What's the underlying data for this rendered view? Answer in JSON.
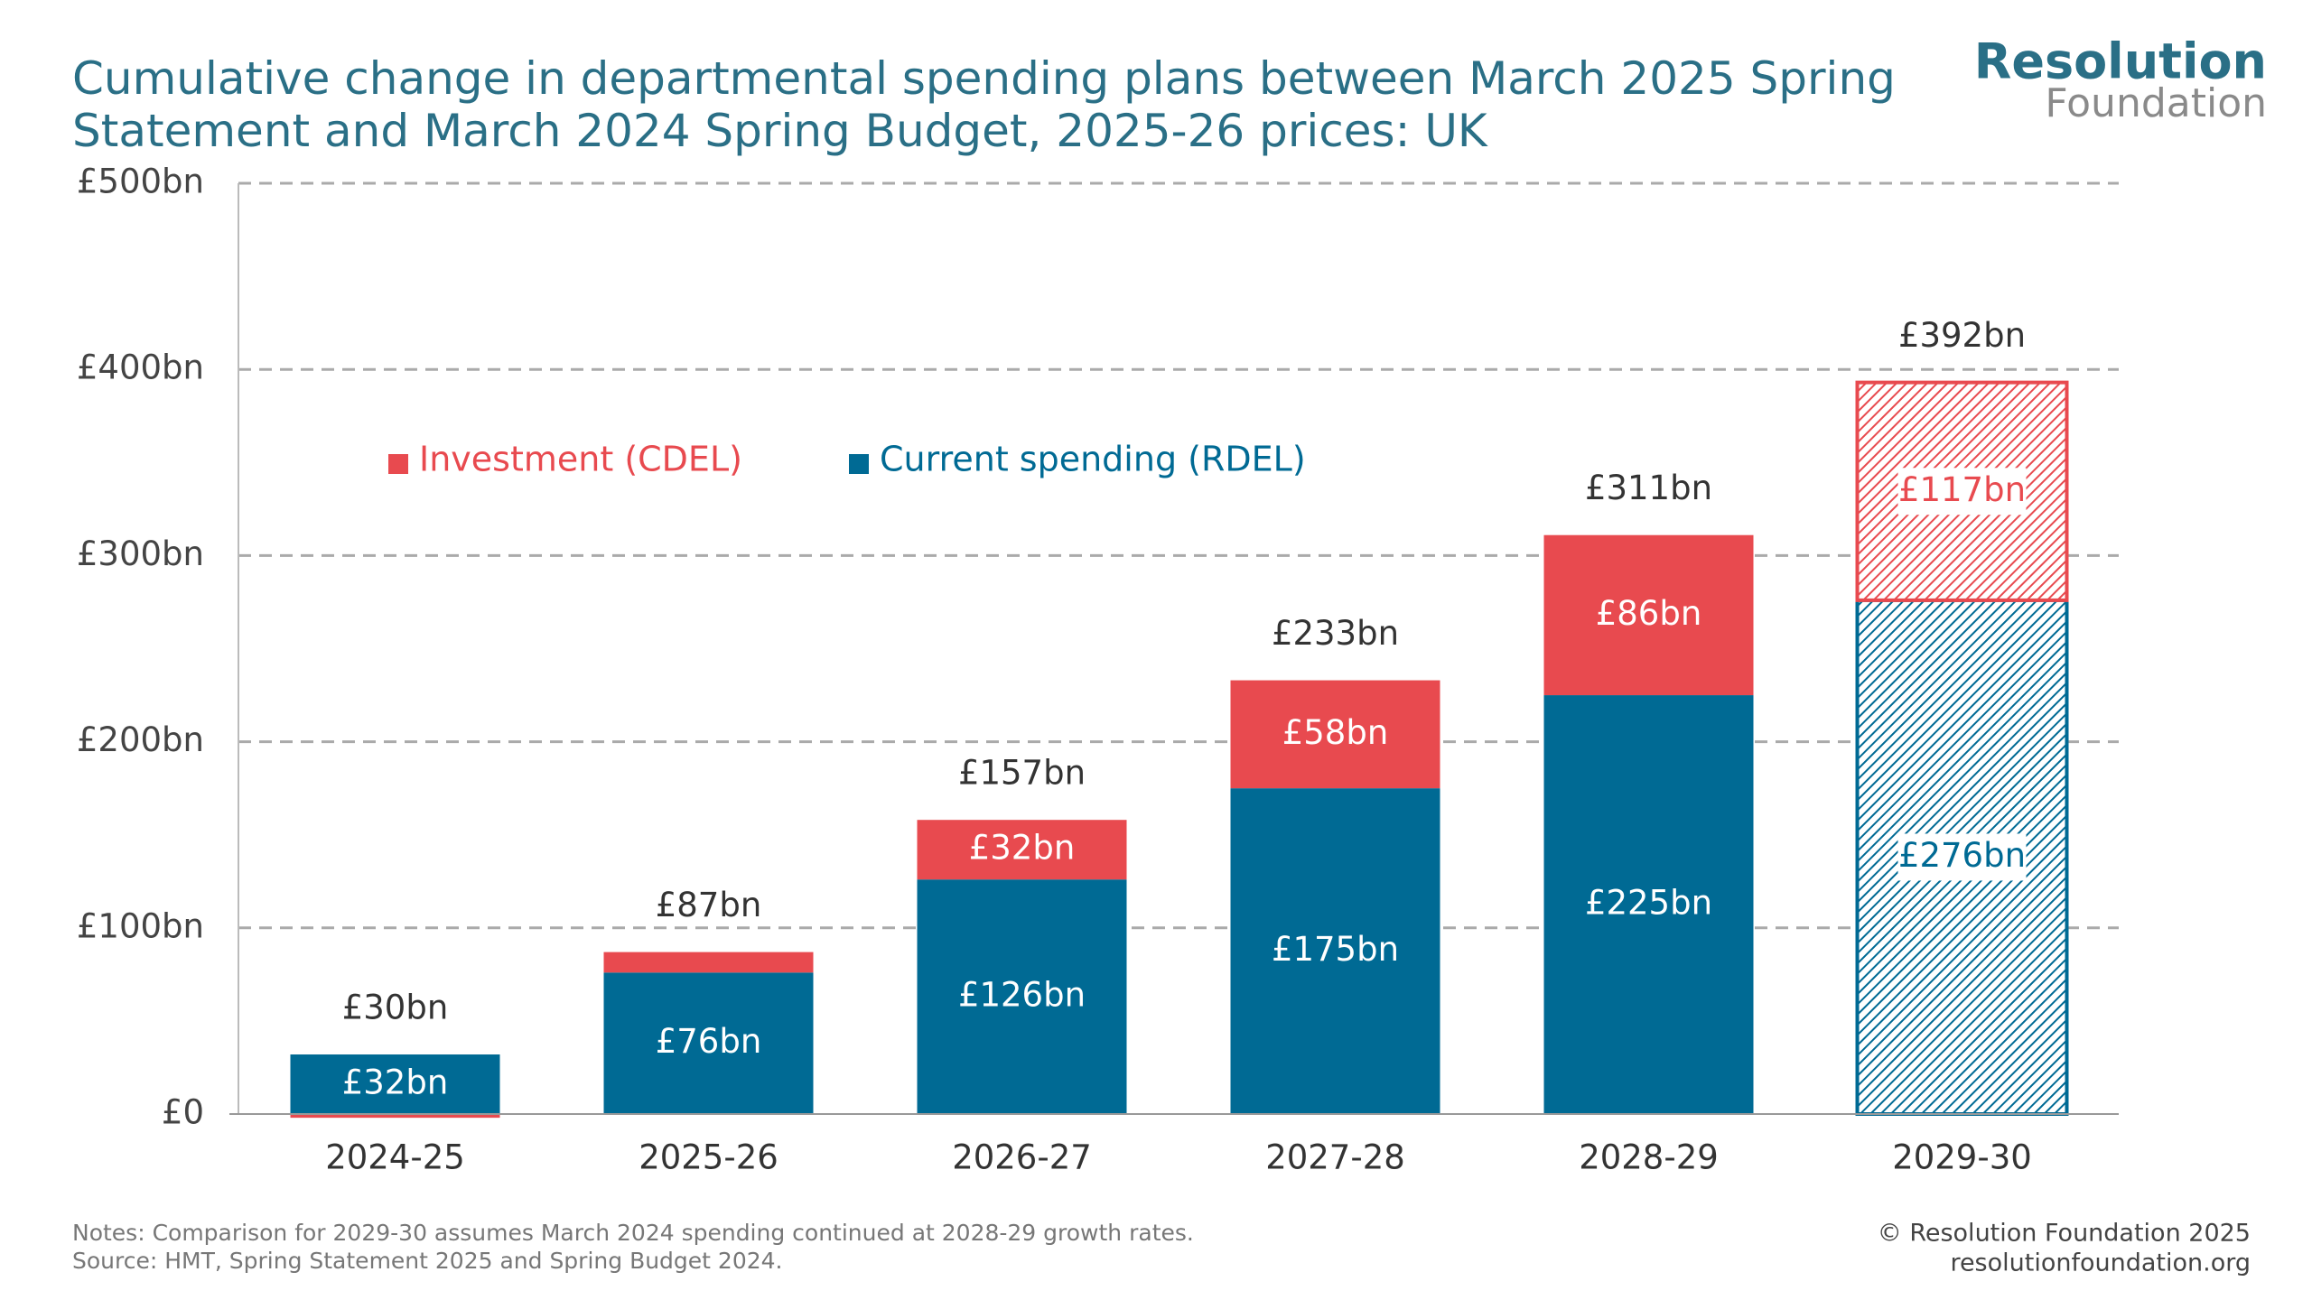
{
  "chart_data": {
    "type": "stacked-bar",
    "title": "Cumulative change in departmental spending plans between March 2025 Spring Statement and March 2024 Spring Budget, 2025-26 prices: UK",
    "brand": {
      "line1": "Resolution",
      "line2": "Foundation"
    },
    "categories": [
      "2024-25",
      "2025-26",
      "2026-27",
      "2027-28",
      "2028-29",
      "2029-30"
    ],
    "series": [
      {
        "name": "Current spending (RDEL)",
        "color": "#006a94",
        "values": [
          32,
          76,
          126,
          175,
          225,
          276
        ],
        "value_labels": [
          "£32bn",
          "£76bn",
          "£126bn",
          "£175bn",
          "£225bn",
          "£276bn"
        ]
      },
      {
        "name": "Investment (CDEL)",
        "color": "#e84a4f",
        "values": [
          -2,
          11,
          32,
          58,
          86,
          117
        ],
        "value_labels": [
          null,
          null,
          "£32bn",
          "£58bn",
          "£86bn",
          "£117bn"
        ]
      }
    ],
    "totals": {
      "values": [
        30,
        87,
        157,
        233,
        311,
        392
      ],
      "value_labels": [
        "£30bn",
        "£87bn",
        "£157bn",
        "£233bn",
        "£311bn",
        "£392bn"
      ]
    },
    "hatched": [
      false,
      false,
      false,
      false,
      false,
      true
    ],
    "ylim": [
      0,
      500
    ],
    "yticks": [
      {
        "value": 0,
        "label": "£0"
      },
      {
        "value": 100,
        "label": "£100bn"
      },
      {
        "value": 200,
        "label": "£200bn"
      },
      {
        "value": 300,
        "label": "£300bn"
      },
      {
        "value": 400,
        "label": "£400bn"
      },
      {
        "value": 500,
        "label": "£500bn"
      }
    ],
    "grid": true,
    "notes": [
      "Notes: Comparison for 2029-30 assumes March 2024 spending continued at 2028-29 growth rates.",
      "Source: HMT, Spring Statement 2025 and Spring Budget 2024."
    ],
    "credits": [
      "© Resolution Foundation 2025",
      "resolutionfoundation.org"
    ]
  }
}
